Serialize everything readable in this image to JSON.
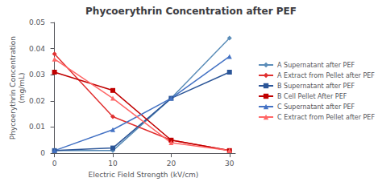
{
  "chart_data": {
    "type": "line",
    "title": "Phycoerythrin Concentration after PEF",
    "xlabel": "Electric Field Strength (kV/cm)",
    "ylabel": "Phycoerythrin Concentration\n(mg/mL)",
    "x": [
      0,
      10,
      20,
      30
    ],
    "series": [
      {
        "name": "A Supernatant after PEF",
        "color": "#5B8DB8",
        "marker": "diamond",
        "line_style": "solid",
        "values": [
          0.001,
          0.001,
          0.021,
          0.044
        ]
      },
      {
        "name": "A Extract from Pellet after PEF",
        "color": "#E03030",
        "marker": "diamond",
        "line_style": "solid",
        "values": [
          0.038,
          0.014,
          0.005,
          0.001
        ]
      },
      {
        "name": "B Supernatant after PEF",
        "color": "#2B5597",
        "marker": "square",
        "line_style": "solid",
        "values": [
          0.001,
          0.002,
          0.021,
          0.031
        ]
      },
      {
        "name": "B Cell Pellet After PEF",
        "color": "#C00000",
        "marker": "square",
        "line_style": "solid",
        "values": [
          0.031,
          0.024,
          0.005,
          0.001
        ]
      },
      {
        "name": "C Supernatant after PEF",
        "color": "#4472C4",
        "marker": "triangle",
        "line_style": "solid",
        "values": [
          0.001,
          0.009,
          0.021,
          0.037
        ]
      },
      {
        "name": "C Extract from Pellet after PEF",
        "color": "#FF6666",
        "marker": "triangle",
        "line_style": "solid",
        "values": [
          0.036,
          0.021,
          0.004,
          0.001
        ]
      }
    ],
    "xlim": [
      -0.5,
      31
    ],
    "xticks": [
      0,
      10,
      20,
      30
    ],
    "ylim": [
      0,
      0.05
    ],
    "yticks": [
      0,
      0.01,
      0.02,
      0.03,
      0.04,
      0.05
    ],
    "grid": false,
    "legend": "right"
  }
}
